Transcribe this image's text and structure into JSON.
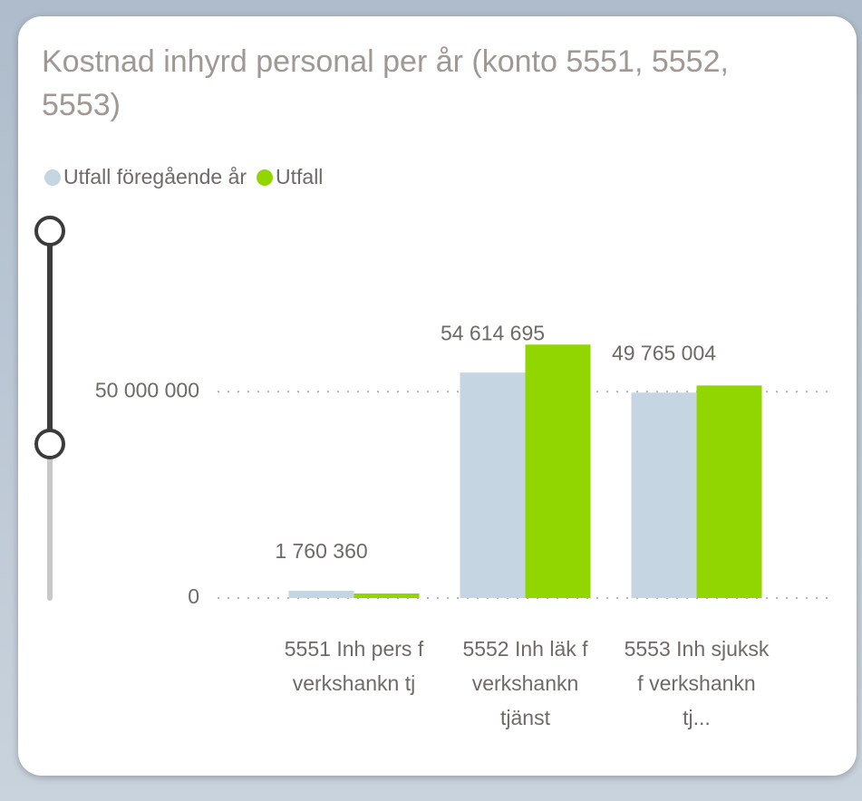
{
  "chart_data": {
    "type": "bar",
    "title": "Kostnad inhyrd personal per år (konto 5551, 5552, 5553)",
    "categories": [
      "5551 Inh pers f verkshankn tj",
      "5552 Inh läk f verkshankn tjänst",
      "5553 Inh sjuksk f verkshankn tj..."
    ],
    "series": [
      {
        "name": "Utfall föregående år",
        "color": "#c5d5e2",
        "values": [
          1760360,
          54614695,
          49765004
        ],
        "value_labels": [
          "1 760 360",
          "54 614 695",
          "49 765 004"
        ]
      },
      {
        "name": "Utfall",
        "color": "#91d600",
        "values": [
          1100000,
          61400000,
          51500000
        ]
      }
    ],
    "ylim": [
      0,
      90000000
    ],
    "yticks": [
      0,
      {
        "value": 50000000,
        "label": "50 000 000"
      }
    ],
    "grid": true,
    "legend": "top-left"
  }
}
